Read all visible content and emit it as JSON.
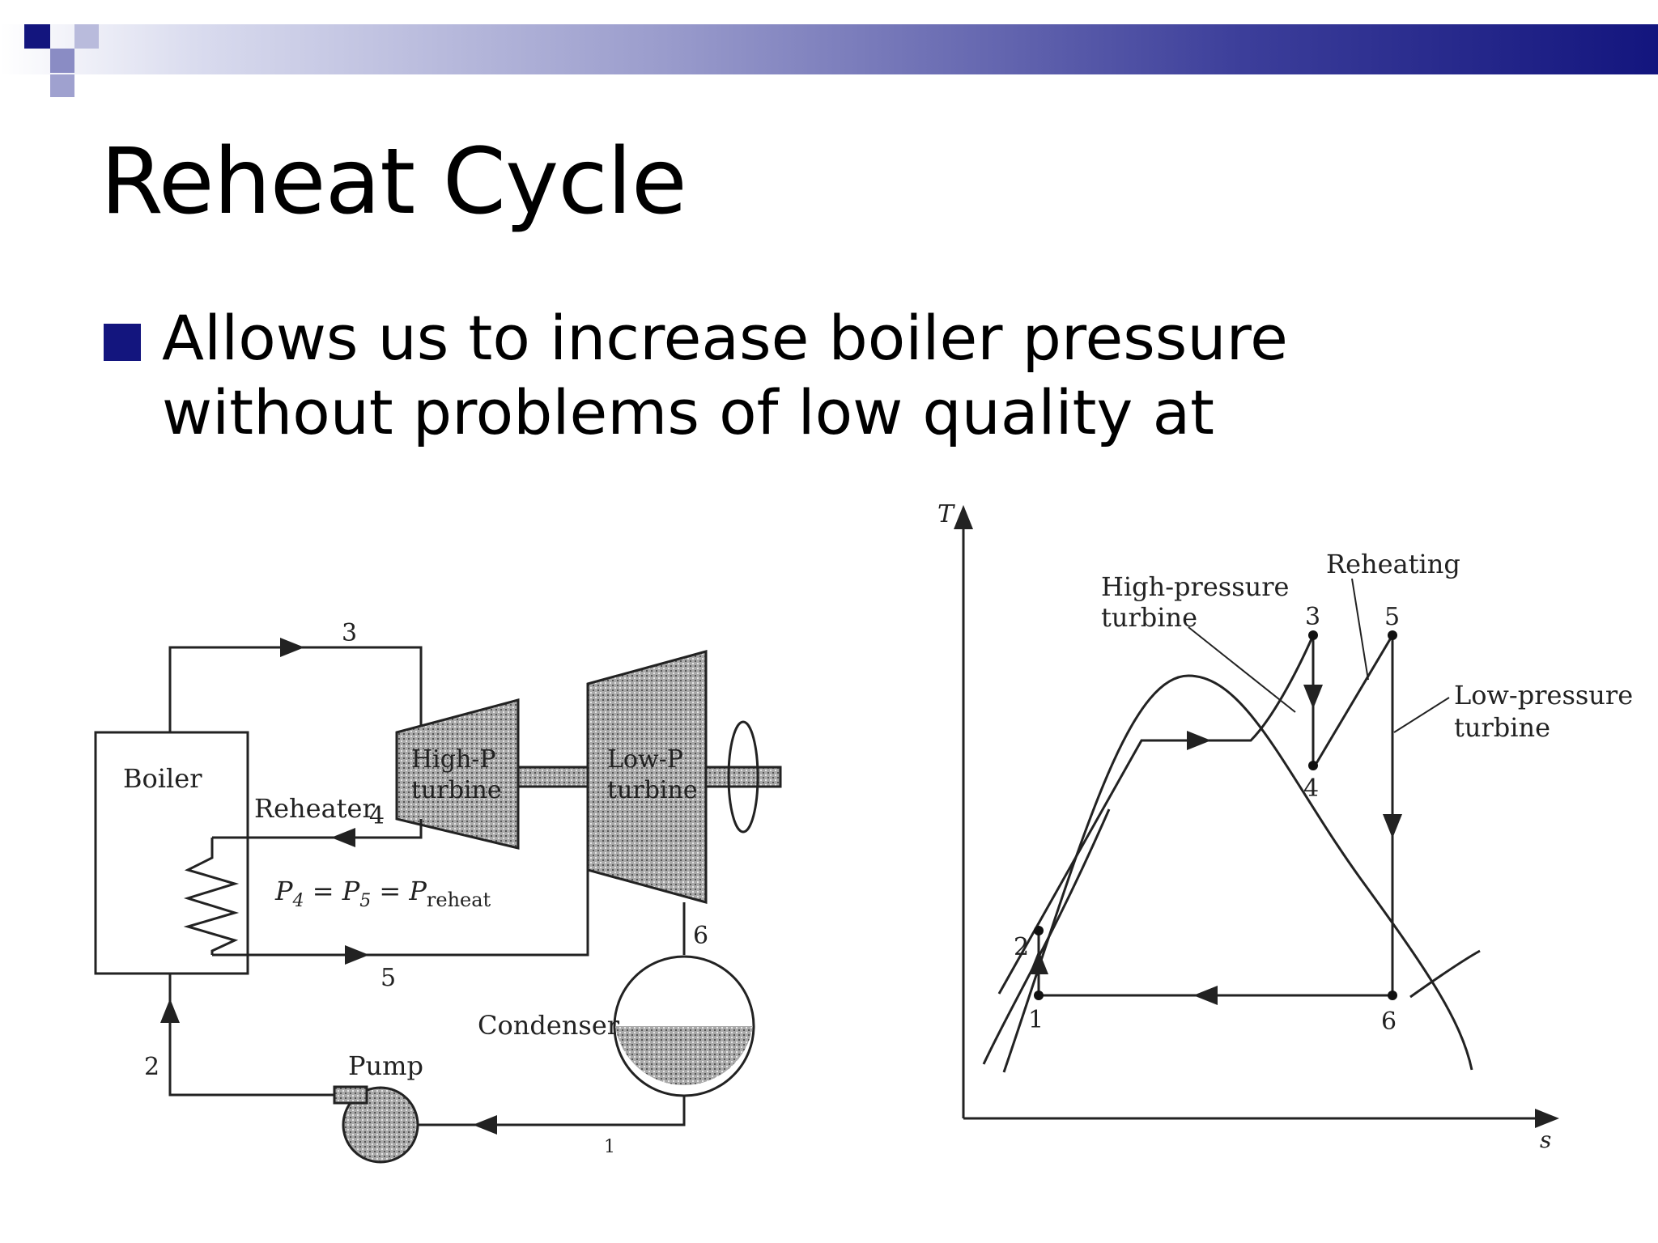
{
  "slide": {
    "title": "Reheat Cycle",
    "bullet_lines": [
      "Allows us to increase boiler pressure",
      "without  problems of low quality at"
    ]
  },
  "colors": {
    "accent": "#13157e",
    "text": "#000000",
    "diagram_ink": "#222222"
  },
  "schematic": {
    "boiler": "Boiler",
    "reheater": "Reheater",
    "hp_turbine": [
      "High-P",
      "turbine"
    ],
    "lp_turbine": [
      "Low-P",
      "turbine"
    ],
    "condenser": "Condenser",
    "pump": "Pump",
    "equation": {
      "p4": "P",
      "sub4": "4",
      "eq1": " = P",
      "sub5": "5",
      "eq2": " = P",
      "subreheat": "reheat"
    },
    "state_labels": {
      "s1": "1",
      "s2": "2",
      "s3": "3",
      "s4": "4",
      "s5": "5",
      "s6": "6"
    }
  },
  "ts_diagram": {
    "axis_y": "T",
    "axis_x": "s",
    "label_hp_turbine": [
      "High-pressure",
      "turbine"
    ],
    "label_reheating": "Reheating",
    "label_lp_turbine": [
      "Low-pressure",
      "turbine"
    ],
    "points": {
      "p1": "1",
      "p2": "2",
      "p3": "3",
      "p4": "4",
      "p5": "5",
      "p6": "6"
    }
  }
}
